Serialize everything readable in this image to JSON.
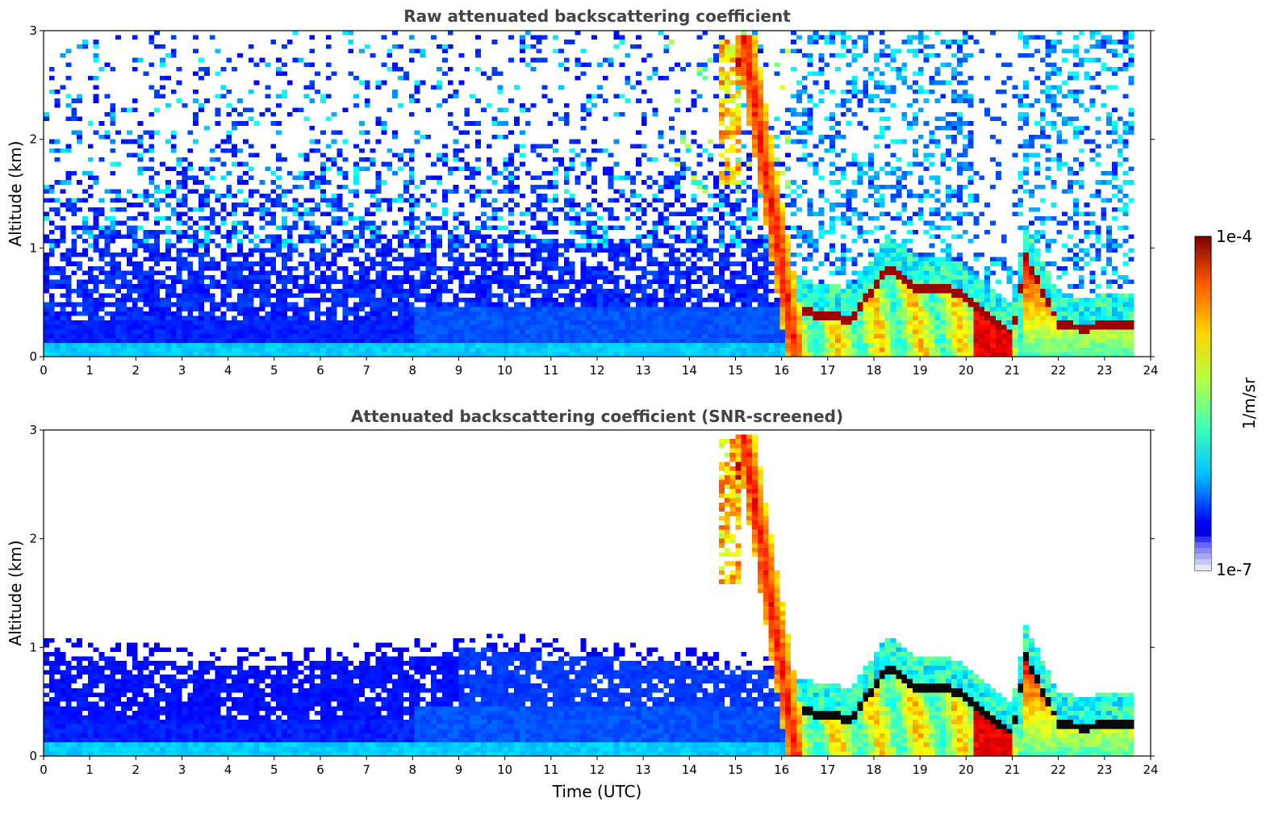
{
  "chart_data": [
    {
      "type": "heatmap",
      "title": "Raw attenuated backscattering coefficient",
      "xlabel": "",
      "ylabel": "Altitude (km)",
      "xlim": [
        0,
        24
      ],
      "ylim": [
        0,
        3
      ],
      "xticks": [
        "0",
        "1",
        "2",
        "3",
        "4",
        "5",
        "6",
        "7",
        "8",
        "9",
        "10",
        "11",
        "12",
        "13",
        "14",
        "15",
        "16",
        "17",
        "18",
        "19",
        "20",
        "21",
        "22",
        "23",
        "24"
      ],
      "yticks": [
        "0",
        "1",
        "2",
        "3"
      ],
      "screened": false
    },
    {
      "type": "heatmap",
      "title": "Attenuated backscattering coefficient (SNR-screened)",
      "xlabel": "Time (UTC)",
      "ylabel": "Altitude (km)",
      "xlim": [
        0,
        24
      ],
      "ylim": [
        0,
        3
      ],
      "xticks": [
        "0",
        "1",
        "2",
        "3",
        "4",
        "5",
        "6",
        "7",
        "8",
        "9",
        "10",
        "11",
        "12",
        "13",
        "14",
        "15",
        "16",
        "17",
        "18",
        "19",
        "20",
        "21",
        "22",
        "23",
        "24"
      ],
      "yticks": [
        "0",
        "1",
        "2",
        "3"
      ],
      "screened": true
    }
  ],
  "colorbar": {
    "label": "1/m/sr",
    "max_label": "1e-4",
    "min_label": "1e-7",
    "scale": "log",
    "colormap": "jet",
    "colors": [
      "#00007f",
      "#0000ff",
      "#00bfff",
      "#41ffb6",
      "#b6ff41",
      "#ffd300",
      "#ff5a00",
      "#7f0000"
    ]
  },
  "features": {
    "data_end_hour": 23.6,
    "aerosol_layer_top_km": 0.4,
    "descending_layer": {
      "start_hour": 15.1,
      "start_km": 2.9,
      "end_hour": 16.2,
      "end_km": 0.05
    },
    "boundary_layer_top": [
      [
        16.5,
        0.45
      ],
      [
        17.5,
        0.38
      ],
      [
        18.3,
        0.85
      ],
      [
        19.0,
        0.65
      ],
      [
        19.7,
        0.65
      ],
      [
        20.4,
        0.45
      ],
      [
        21.0,
        0.25
      ],
      [
        21.3,
        0.95
      ],
      [
        22.0,
        0.35
      ],
      [
        22.5,
        0.3
      ],
      [
        23.6,
        0.35
      ]
    ]
  }
}
